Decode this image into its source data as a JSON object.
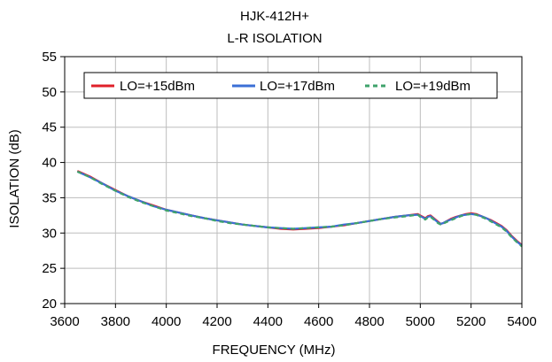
{
  "chart_data": {
    "type": "line",
    "title": "HJK-412H+",
    "subtitle": "L-R ISOLATION",
    "xlabel": "FREQUENCY (MHz)",
    "ylabel": "ISOLATION (dB)",
    "xlim": [
      3600,
      5400
    ],
    "ylim": [
      20,
      55
    ],
    "x_ticks": [
      3600,
      3800,
      4000,
      4200,
      4400,
      4600,
      4800,
      5000,
      5200,
      5400
    ],
    "y_ticks": [
      20,
      25,
      30,
      35,
      40,
      45,
      50,
      55
    ],
    "grid": true,
    "legend_position": "top",
    "series": [
      {
        "name": "LO=+15dBm",
        "color": "#e0202a",
        "style": "solid",
        "x": [
          3650,
          3700,
          3750,
          3800,
          3850,
          3900,
          3950,
          4000,
          4050,
          4100,
          4150,
          4200,
          4250,
          4300,
          4350,
          4400,
          4450,
          4500,
          4550,
          4600,
          4650,
          4700,
          4750,
          4800,
          4850,
          4900,
          4950,
          4990,
          5000,
          5010,
          5020,
          5030,
          5040,
          5050,
          5060,
          5070,
          5080,
          5090,
          5100,
          5120,
          5140,
          5160,
          5180,
          5200,
          5220,
          5240,
          5260,
          5280,
          5300,
          5320,
          5340,
          5360,
          5380,
          5400
        ],
        "y": [
          38.8,
          38.0,
          37.0,
          36.1,
          35.2,
          34.5,
          33.9,
          33.3,
          32.9,
          32.5,
          32.1,
          31.8,
          31.5,
          31.2,
          31.0,
          30.8,
          30.6,
          30.5,
          30.6,
          30.7,
          30.9,
          31.1,
          31.4,
          31.7,
          32.0,
          32.3,
          32.5,
          32.7,
          32.5,
          32.3,
          32.1,
          32.4,
          32.5,
          32.2,
          31.9,
          31.6,
          31.3,
          31.4,
          31.6,
          32.0,
          32.3,
          32.5,
          32.7,
          32.8,
          32.7,
          32.4,
          32.1,
          31.8,
          31.4,
          31.0,
          30.4,
          29.6,
          28.9,
          28.3
        ]
      },
      {
        "name": "LO=+17dBm",
        "color": "#3b6fd6",
        "style": "solid",
        "x": [
          3650,
          3700,
          3750,
          3800,
          3850,
          3900,
          3950,
          4000,
          4050,
          4100,
          4150,
          4200,
          4250,
          4300,
          4350,
          4400,
          4450,
          4500,
          4550,
          4600,
          4650,
          4700,
          4750,
          4800,
          4850,
          4900,
          4950,
          4990,
          5000,
          5010,
          5020,
          5030,
          5040,
          5050,
          5060,
          5070,
          5080,
          5090,
          5100,
          5120,
          5140,
          5160,
          5180,
          5200,
          5220,
          5240,
          5260,
          5280,
          5300,
          5320,
          5340,
          5360,
          5380,
          5400
        ],
        "y": [
          38.7,
          37.9,
          37.0,
          36.0,
          35.2,
          34.5,
          33.8,
          33.3,
          32.9,
          32.5,
          32.1,
          31.8,
          31.5,
          31.2,
          31.0,
          30.8,
          30.7,
          30.6,
          30.7,
          30.8,
          30.9,
          31.2,
          31.4,
          31.7,
          32.0,
          32.3,
          32.5,
          32.6,
          32.4,
          32.2,
          32.0,
          32.3,
          32.4,
          32.1,
          31.8,
          31.5,
          31.3,
          31.4,
          31.6,
          31.9,
          32.2,
          32.5,
          32.6,
          32.7,
          32.6,
          32.4,
          32.1,
          31.7,
          31.3,
          30.9,
          30.3,
          29.5,
          28.8,
          28.2
        ]
      },
      {
        "name": "LO=+19dBm",
        "color": "#3fa36b",
        "style": "dashed",
        "x": [
          3650,
          3700,
          3750,
          3800,
          3850,
          3900,
          3950,
          4000,
          4050,
          4100,
          4150,
          4200,
          4250,
          4300,
          4350,
          4400,
          4450,
          4500,
          4550,
          4600,
          4650,
          4700,
          4750,
          4800,
          4850,
          4900,
          4950,
          4990,
          5000,
          5010,
          5020,
          5030,
          5040,
          5050,
          5060,
          5070,
          5080,
          5090,
          5100,
          5120,
          5140,
          5160,
          5180,
          5200,
          5220,
          5240,
          5260,
          5280,
          5300,
          5320,
          5340,
          5360,
          5380,
          5400
        ],
        "y": [
          38.7,
          37.9,
          36.9,
          36.0,
          35.1,
          34.4,
          33.8,
          33.2,
          32.8,
          32.4,
          32.1,
          31.7,
          31.4,
          31.2,
          31.0,
          30.8,
          30.7,
          30.6,
          30.7,
          30.8,
          30.9,
          31.1,
          31.4,
          31.7,
          32.0,
          32.2,
          32.4,
          32.6,
          32.3,
          32.1,
          31.9,
          32.2,
          32.3,
          32.0,
          31.7,
          31.4,
          31.2,
          31.3,
          31.5,
          31.8,
          32.1,
          32.4,
          32.6,
          32.7,
          32.6,
          32.3,
          32.0,
          31.6,
          31.2,
          30.8,
          30.2,
          29.4,
          28.7,
          28.1
        ]
      }
    ]
  }
}
